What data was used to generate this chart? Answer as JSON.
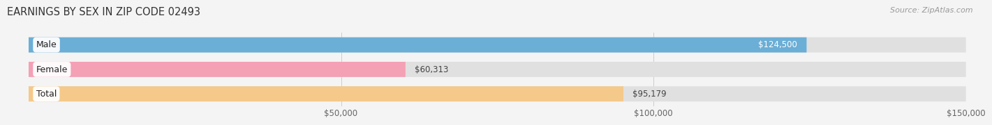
{
  "title": "EARNINGS BY SEX IN ZIP CODE 02493",
  "source": "Source: ZipAtlas.com",
  "categories": [
    "Male",
    "Female",
    "Total"
  ],
  "values": [
    124500,
    60313,
    95179
  ],
  "bar_colors": [
    "#6baed6",
    "#f4a0b5",
    "#f5c98a"
  ],
  "label_inside": [
    true,
    false,
    false
  ],
  "value_labels": [
    "$124,500",
    "$60,313",
    "$95,179"
  ],
  "x_min": 0,
  "x_max": 150000,
  "x_ticks": [
    50000,
    100000,
    150000
  ],
  "x_tick_labels": [
    "$50,000",
    "$100,000",
    "$150,000"
  ],
  "bar_height": 0.62,
  "background_color": "#f4f4f4",
  "bar_bg_color": "#e0e0e0",
  "title_fontsize": 10.5,
  "tick_fontsize": 8.5,
  "label_fontsize": 8.5,
  "category_fontsize": 9,
  "source_fontsize": 8
}
